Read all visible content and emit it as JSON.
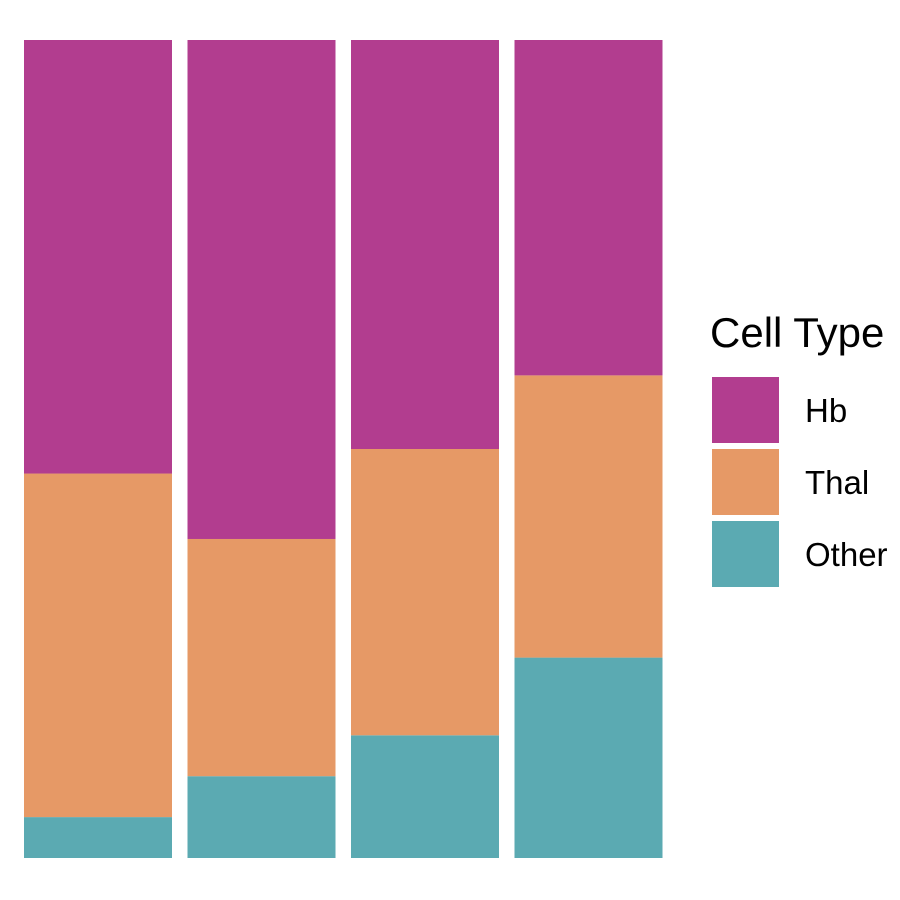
{
  "chart_data": {
    "type": "bar",
    "stacked": true,
    "normalized": true,
    "categories": [
      "",
      "",
      "",
      ""
    ],
    "series": [
      {
        "name": "Hb",
        "color": "#b23d8f",
        "values": [
          0.53,
          0.61,
          0.5,
          0.41
        ]
      },
      {
        "name": "Thal",
        "color": "#e69966",
        "values": [
          0.42,
          0.29,
          0.35,
          0.345
        ]
      },
      {
        "name": "Other",
        "color": "#5baab2",
        "values": [
          0.05,
          0.1,
          0.15,
          0.245
        ]
      }
    ],
    "stack_order_bottom_to_top": [
      "Other",
      "Thal",
      "Hb"
    ],
    "ylim": [
      0,
      1
    ],
    "axes_visible": false,
    "grid": false,
    "legend": {
      "title": "Cell Type",
      "position": "right",
      "items": [
        "Hb",
        "Thal",
        "Other"
      ]
    }
  }
}
